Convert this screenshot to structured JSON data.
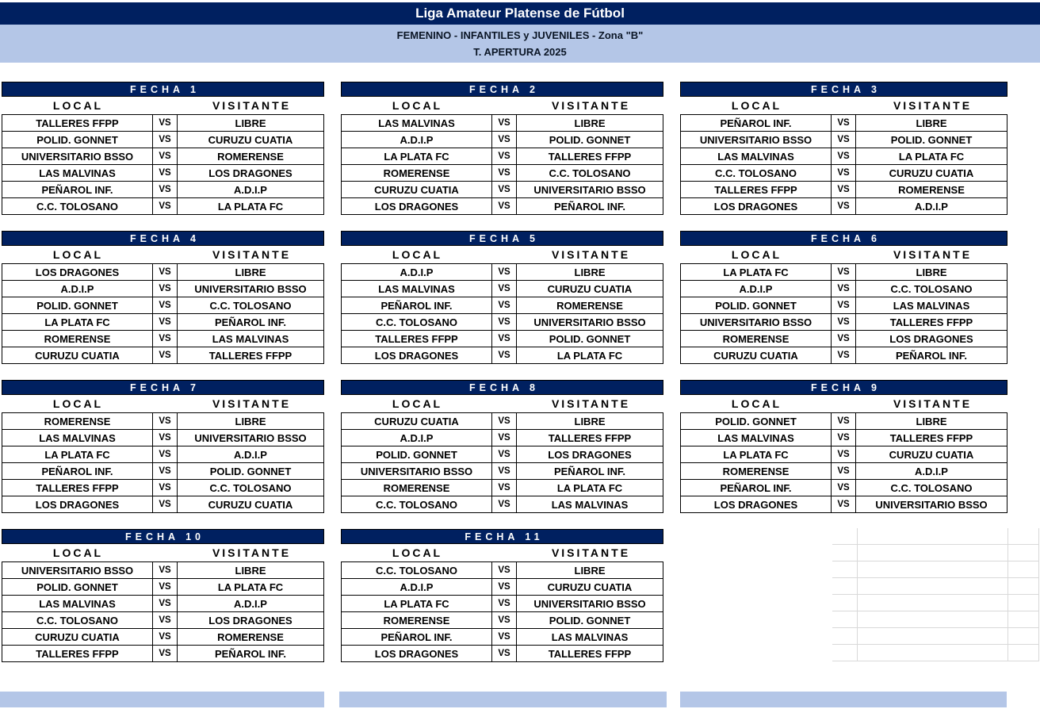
{
  "header": {
    "title": "Liga Amateur Platense de Fútbol",
    "subtitle1": "FEMENINO - INFANTILES y JUVENILES - Zona \"B\"",
    "subtitle2": "T. APERTURA 2025"
  },
  "labels": {
    "local": "LOCAL",
    "visitante": "VISITANTE",
    "vs": "VS"
  },
  "colors": {
    "navy": "#002060",
    "light_blue": "#B4C6E7",
    "border": "#000000",
    "grid_line": "#D9D9D9"
  },
  "fixtures": [
    {
      "name": "FECHA 1",
      "matches": [
        {
          "local": "TALLERES FFPP",
          "visitante": "LIBRE"
        },
        {
          "local": "POLID. GONNET",
          "visitante": "CURUZU CUATIA"
        },
        {
          "local": "UNIVERSITARIO BSSO",
          "visitante": "ROMERENSE"
        },
        {
          "local": "LAS MALVINAS",
          "visitante": "LOS DRAGONES"
        },
        {
          "local": "PEÑAROL INF.",
          "visitante": "A.D.I.P"
        },
        {
          "local": "C.C. TOLOSANO",
          "visitante": "LA PLATA FC"
        }
      ]
    },
    {
      "name": "FECHA 2",
      "matches": [
        {
          "local": "LAS MALVINAS",
          "visitante": "LIBRE"
        },
        {
          "local": "A.D.I.P",
          "visitante": "POLID. GONNET"
        },
        {
          "local": "LA PLATA FC",
          "visitante": "TALLERES FFPP"
        },
        {
          "local": "ROMERENSE",
          "visitante": "C.C. TOLOSANO"
        },
        {
          "local": "CURUZU CUATIA",
          "visitante": "UNIVERSITARIO BSSO"
        },
        {
          "local": "LOS DRAGONES",
          "visitante": "PEÑAROL INF."
        }
      ]
    },
    {
      "name": "FECHA 3",
      "matches": [
        {
          "local": "PEÑAROL INF.",
          "visitante": "LIBRE"
        },
        {
          "local": "UNIVERSITARIO BSSO",
          "visitante": "POLID. GONNET"
        },
        {
          "local": "LAS MALVINAS",
          "visitante": "LA PLATA FC"
        },
        {
          "local": "C.C. TOLOSANO",
          "visitante": "CURUZU CUATIA"
        },
        {
          "local": "TALLERES FFPP",
          "visitante": "ROMERENSE"
        },
        {
          "local": "LOS DRAGONES",
          "visitante": "A.D.I.P"
        }
      ]
    },
    {
      "name": "FECHA 4",
      "matches": [
        {
          "local": "LOS DRAGONES",
          "visitante": "LIBRE"
        },
        {
          "local": "A.D.I.P",
          "visitante": "UNIVERSITARIO BSSO"
        },
        {
          "local": "POLID. GONNET",
          "visitante": "C.C. TOLOSANO"
        },
        {
          "local": "LA PLATA FC",
          "visitante": "PEÑAROL INF."
        },
        {
          "local": "ROMERENSE",
          "visitante": "LAS MALVINAS"
        },
        {
          "local": "CURUZU CUATIA",
          "visitante": "TALLERES FFPP"
        }
      ]
    },
    {
      "name": "FECHA 5",
      "matches": [
        {
          "local": "A.D.I.P",
          "visitante": "LIBRE"
        },
        {
          "local": "LAS MALVINAS",
          "visitante": "CURUZU CUATIA"
        },
        {
          "local": "PEÑAROL INF.",
          "visitante": "ROMERENSE"
        },
        {
          "local": "C.C. TOLOSANO",
          "visitante": "UNIVERSITARIO BSSO"
        },
        {
          "local": "TALLERES FFPP",
          "visitante": "POLID. GONNET"
        },
        {
          "local": "LOS DRAGONES",
          "visitante": "LA PLATA FC"
        }
      ]
    },
    {
      "name": "FECHA 6",
      "matches": [
        {
          "local": "LA PLATA FC",
          "visitante": "LIBRE"
        },
        {
          "local": "A.D.I.P",
          "visitante": "C.C. TOLOSANO"
        },
        {
          "local": "POLID. GONNET",
          "visitante": "LAS MALVINAS"
        },
        {
          "local": "UNIVERSITARIO BSSO",
          "visitante": "TALLERES FFPP"
        },
        {
          "local": "ROMERENSE",
          "visitante": "LOS DRAGONES"
        },
        {
          "local": "CURUZU CUATIA",
          "visitante": "PEÑAROL INF."
        }
      ]
    },
    {
      "name": "FECHA 7",
      "matches": [
        {
          "local": "ROMERENSE",
          "visitante": "LIBRE"
        },
        {
          "local": "LAS MALVINAS",
          "visitante": "UNIVERSITARIO BSSO"
        },
        {
          "local": "LA PLATA FC",
          "visitante": "A.D.I.P"
        },
        {
          "local": "PEÑAROL INF.",
          "visitante": "POLID. GONNET"
        },
        {
          "local": "TALLERES FFPP",
          "visitante": "C.C. TOLOSANO"
        },
        {
          "local": "LOS DRAGONES",
          "visitante": "CURUZU CUATIA"
        }
      ]
    },
    {
      "name": "FECHA 8",
      "matches": [
        {
          "local": "CURUZU CUATIA",
          "visitante": "LIBRE"
        },
        {
          "local": "A.D.I.P",
          "visitante": "TALLERES FFPP"
        },
        {
          "local": "POLID. GONNET",
          "visitante": "LOS DRAGONES"
        },
        {
          "local": "UNIVERSITARIO BSSO",
          "visitante": "PEÑAROL INF."
        },
        {
          "local": "ROMERENSE",
          "visitante": "LA PLATA FC"
        },
        {
          "local": "C.C. TOLOSANO",
          "visitante": "LAS MALVINAS"
        }
      ]
    },
    {
      "name": "FECHA 9",
      "matches": [
        {
          "local": "POLID. GONNET",
          "visitante": "LIBRE"
        },
        {
          "local": "LAS MALVINAS",
          "visitante": "TALLERES FFPP"
        },
        {
          "local": "LA PLATA FC",
          "visitante": "CURUZU CUATIA"
        },
        {
          "local": "ROMERENSE",
          "visitante": "A.D.I.P"
        },
        {
          "local": "PEÑAROL INF.",
          "visitante": "C.C. TOLOSANO"
        },
        {
          "local": "LOS DRAGONES",
          "visitante": "UNIVERSITARIO BSSO"
        }
      ]
    },
    {
      "name": "FECHA 10",
      "matches": [
        {
          "local": "UNIVERSITARIO BSSO",
          "visitante": "LIBRE"
        },
        {
          "local": "POLID. GONNET",
          "visitante": "LA PLATA FC"
        },
        {
          "local": "LAS MALVINAS",
          "visitante": "A.D.I.P"
        },
        {
          "local": "C.C. TOLOSANO",
          "visitante": "LOS DRAGONES"
        },
        {
          "local": "CURUZU CUATIA",
          "visitante": "ROMERENSE"
        },
        {
          "local": "TALLERES FFPP",
          "visitante": "PEÑAROL INF."
        }
      ]
    },
    {
      "name": "FECHA 11",
      "matches": [
        {
          "local": "C.C. TOLOSANO",
          "visitante": "LIBRE"
        },
        {
          "local": "A.D.I.P",
          "visitante": "CURUZU CUATIA"
        },
        {
          "local": "LA PLATA FC",
          "visitante": "UNIVERSITARIO BSSO"
        },
        {
          "local": "ROMERENSE",
          "visitante": "POLID. GONNET"
        },
        {
          "local": "PEÑAROL INF.",
          "visitante": "LAS MALVINAS"
        },
        {
          "local": "LOS DRAGONES",
          "visitante": "TALLERES FFPP"
        }
      ]
    }
  ]
}
